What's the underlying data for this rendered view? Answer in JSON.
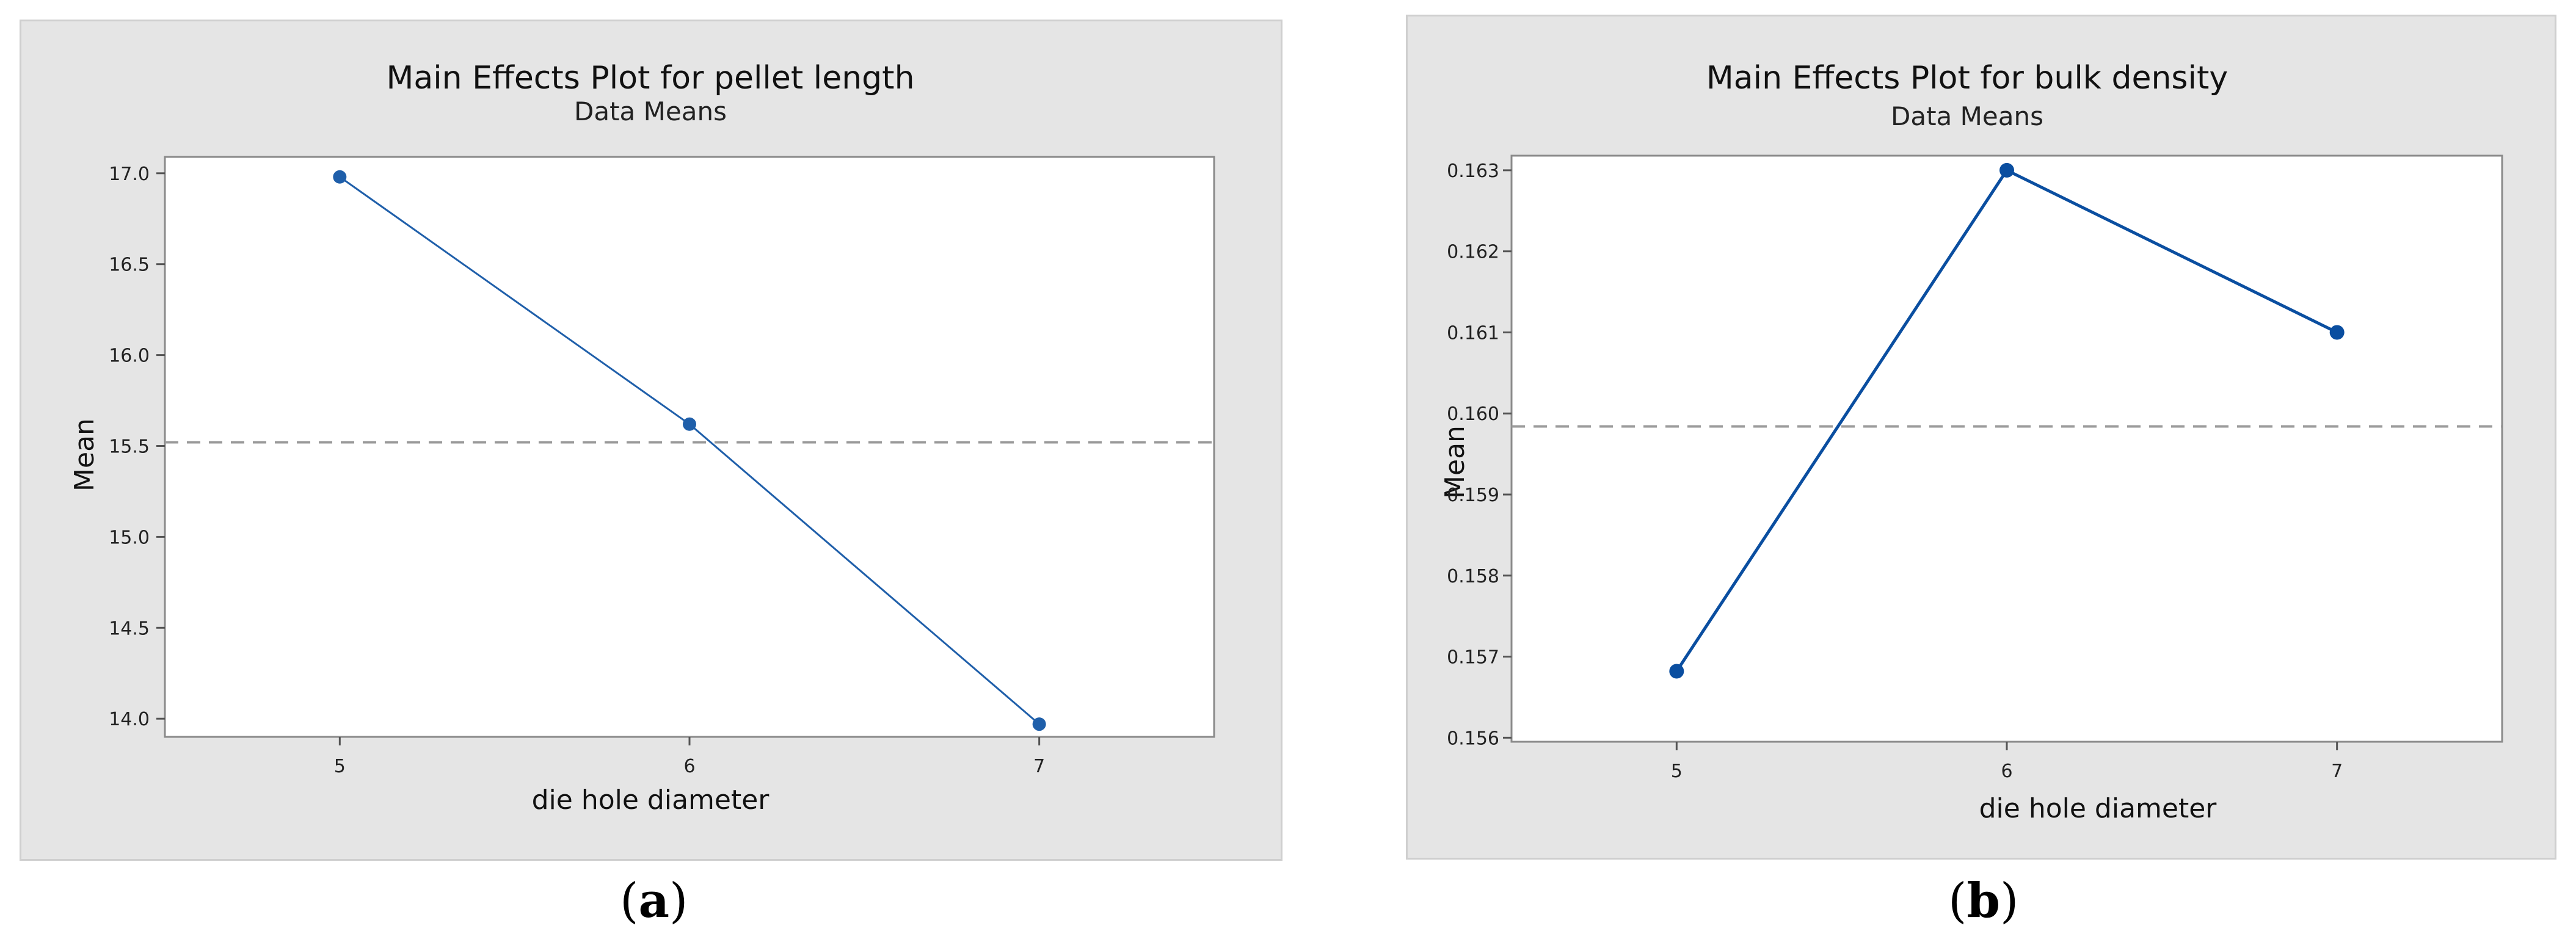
{
  "chart_data": [
    {
      "type": "line",
      "title": "Main Effects Plot for pellet length",
      "subtitle": "Data Means",
      "xlabel": "die hole diameter",
      "ylabel": "Mean",
      "x": [
        5,
        6,
        7
      ],
      "series": [
        {
          "values": [
            16.98,
            15.62,
            13.97
          ]
        }
      ],
      "reference_line": {
        "style": "dashed",
        "value": 15.52
      },
      "yticks": [
        "14.0",
        "14.5",
        "15.0",
        "15.5",
        "16.0",
        "16.5",
        "17.0"
      ],
      "xticks": [
        "5",
        "6",
        "7"
      ],
      "xlim": [
        4.5,
        7.5
      ],
      "ylim": [
        13.9,
        17.09
      ],
      "grid": false,
      "colors": {
        "series": "#1f5faa",
        "reference": "#9a9a9a",
        "plot_bg": "#ffffff",
        "panel_bg": "#e5e5e5"
      },
      "caption_letter": "a"
    },
    {
      "type": "line",
      "title": "Main Effects Plot for bulk density",
      "subtitle": "Data Means",
      "xlabel": "die hole diameter",
      "ylabel": "Mean",
      "x": [
        5,
        6,
        7
      ],
      "series": [
        {
          "values": [
            0.15682,
            0.163,
            0.161
          ]
        }
      ],
      "reference_line": {
        "style": "dashed",
        "value": 0.15984
      },
      "yticks": [
        "0.156",
        "0.157",
        "0.158",
        "0.159",
        "0.160",
        "0.161",
        "0.162",
        "0.163"
      ],
      "xticks": [
        "5",
        "6",
        "7"
      ],
      "xlim": [
        4.5,
        7.5
      ],
      "ylim": [
        0.15595,
        0.16318
      ],
      "grid": false,
      "colors": {
        "series": "#0a4ea0",
        "reference": "#9a9a9a",
        "plot_bg": "#ffffff",
        "panel_bg": "#e5e5e5"
      },
      "caption_letter": "b"
    }
  ]
}
